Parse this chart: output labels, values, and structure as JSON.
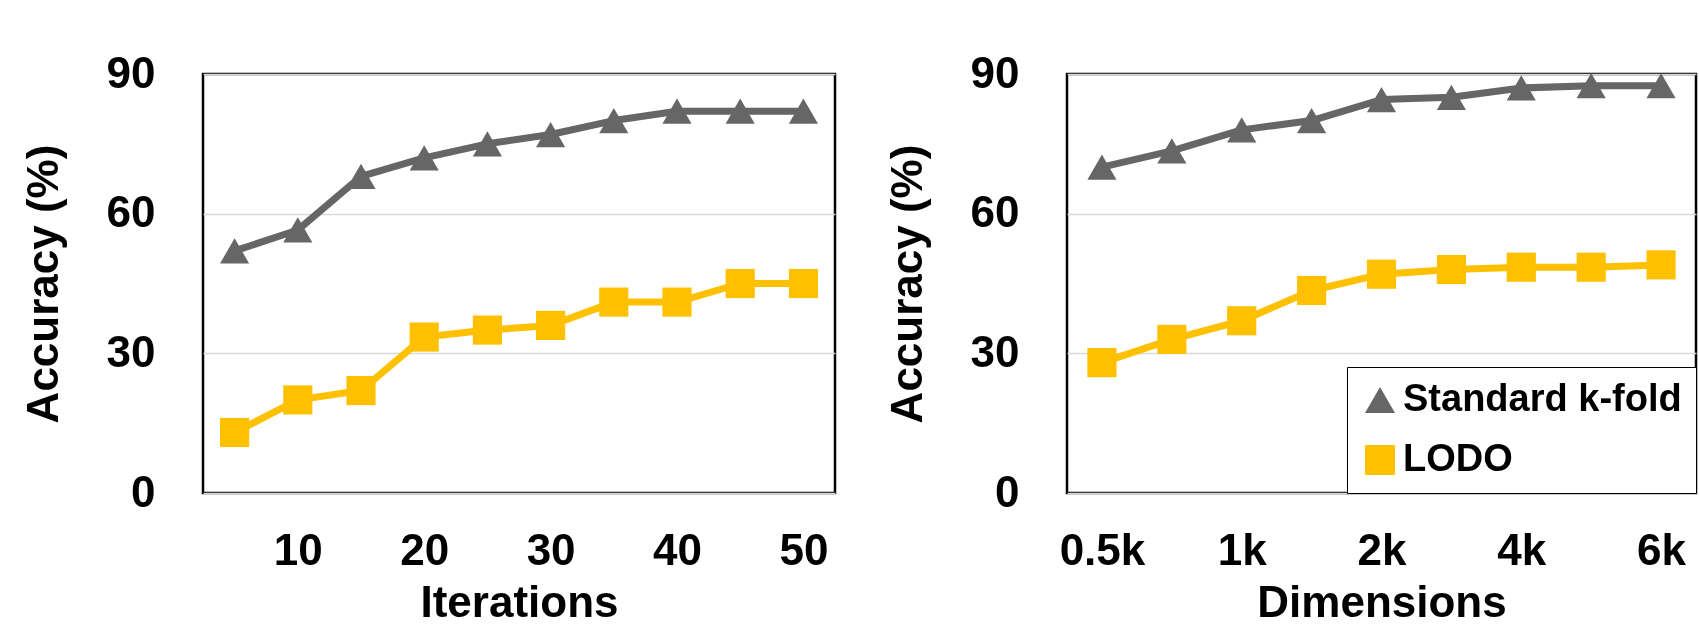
{
  "chart_data": [
    {
      "type": "line",
      "xlabel": "Iterations",
      "ylabel": "Accuracy (%)",
      "x": [
        5,
        10,
        15,
        20,
        25,
        30,
        35,
        40,
        45,
        50
      ],
      "xlim": [
        2.5,
        52.5
      ],
      "xticks": [
        10,
        20,
        30,
        40,
        50
      ],
      "ylim": [
        0,
        90
      ],
      "yticks": [
        0,
        30,
        60,
        90
      ],
      "grid": "y",
      "series": [
        {
          "color": "#666666",
          "marker": "triangle",
          "values": [
            52,
            56.5,
            68,
            72,
            75,
            77,
            80,
            82,
            82,
            82
          ]
        },
        {
          "color": "#ffc000",
          "marker": "square",
          "values": [
            13,
            20,
            22,
            33.5,
            35,
            36,
            41,
            41,
            45,
            45
          ]
        }
      ]
    },
    {
      "type": "line",
      "xlabel": "Dimensions",
      "ylabel": "Accuracy (%)",
      "categories": [
        "0.5k",
        null,
        "1k",
        null,
        "2k",
        null,
        "4k",
        null,
        "6k"
      ],
      "ylim": [
        0,
        90
      ],
      "yticks": [
        0,
        30,
        60,
        90
      ],
      "grid": "y",
      "legend": "bottom right",
      "series": [
        {
          "name": "Standard k-fold",
          "color": "#666666",
          "marker": "triangle",
          "values": [
            70,
            73.5,
            78,
            80,
            84.5,
            85,
            87,
            87.5,
            87.5
          ]
        },
        {
          "name": "LODO",
          "color": "#ffc000",
          "marker": "square",
          "values": [
            28,
            33,
            37,
            43.5,
            47,
            48,
            48.5,
            48.5,
            49
          ]
        }
      ]
    }
  ]
}
